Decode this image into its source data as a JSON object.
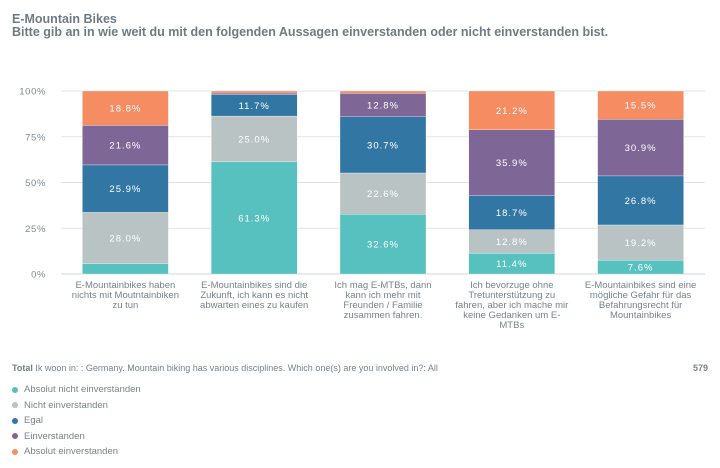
{
  "header": {
    "title": "E-Mountain Bikes",
    "subtitle": "Bitte gib an in wie weit du mit den folgenden Aussagen einverstanden oder nicht einverstanden bist."
  },
  "chart_data": {
    "type": "bar",
    "stacked": true,
    "title": "E-Mountain Bikes",
    "subtitle": "Bitte gib an in wie weit du mit den folgenden Aussagen einverstanden oder nicht einverstanden bist.",
    "xlabel": "",
    "ylabel": "",
    "ylim": [
      0,
      100
    ],
    "yticks": [
      "0%",
      "25%",
      "50%",
      "75%",
      "100%"
    ],
    "grid": true,
    "legend_position": "bottom-left",
    "categories": [
      "E-Mountainbikes haben nichts mit Moutntainbiken zu tun",
      "E-Mountainbikes sind die Zukunft, ich kann es nicht abwarten eines zu kaufen",
      "Ich mag E-MTBs, dann kann ich mehr mit Freunden / Familie zusammen fahren.",
      "Ich bevorzuge ohne Tretunterstützung zu fahren, aber ich mache mir keine Gedanken um E-MTBs",
      "E-Mountainbikes sind eine mögliche Gefahr für das Befahrungsrecht für Mountainbikes"
    ],
    "series": [
      {
        "name": "Absolut nicht einverstanden",
        "color": "#56c1bf",
        "values": [
          5.7,
          61.3,
          32.6,
          11.4,
          7.6
        ],
        "labels": [
          "",
          "61.3%",
          "32.6%",
          "11.4%",
          "7.6%"
        ]
      },
      {
        "name": "Nicht einverstanden",
        "color": "#b9c3c4",
        "values": [
          28.0,
          25.0,
          22.6,
          12.8,
          19.2
        ],
        "labels": [
          "28.0%",
          "25.0%",
          "22.6%",
          "12.8%",
          "19.2%"
        ]
      },
      {
        "name": "Egal",
        "color": "#3276a4",
        "values": [
          25.9,
          11.7,
          30.7,
          18.7,
          26.8
        ],
        "labels": [
          "25.9%",
          "11.7%",
          "30.7%",
          "18.7%",
          "26.8%"
        ]
      },
      {
        "name": "Einverstanden",
        "color": "#7e6796",
        "values": [
          21.6,
          0.9,
          12.8,
          35.9,
          30.9
        ],
        "labels": [
          "21.6%",
          "",
          "12.8%",
          "35.9%",
          "30.9%"
        ]
      },
      {
        "name": "Absolut einverstanden",
        "color": "#f68d62",
        "values": [
          18.8,
          1.1,
          1.3,
          21.2,
          15.5
        ],
        "labels": [
          "18.8%",
          "",
          "",
          "21.2%",
          "15.5%"
        ]
      }
    ]
  },
  "footer": {
    "total_label": "Total",
    "filter_text": "Ik woon in: : Germany. Mountain biking has various disciplines. Which one(s) are you involved in?: All",
    "count": "579"
  }
}
